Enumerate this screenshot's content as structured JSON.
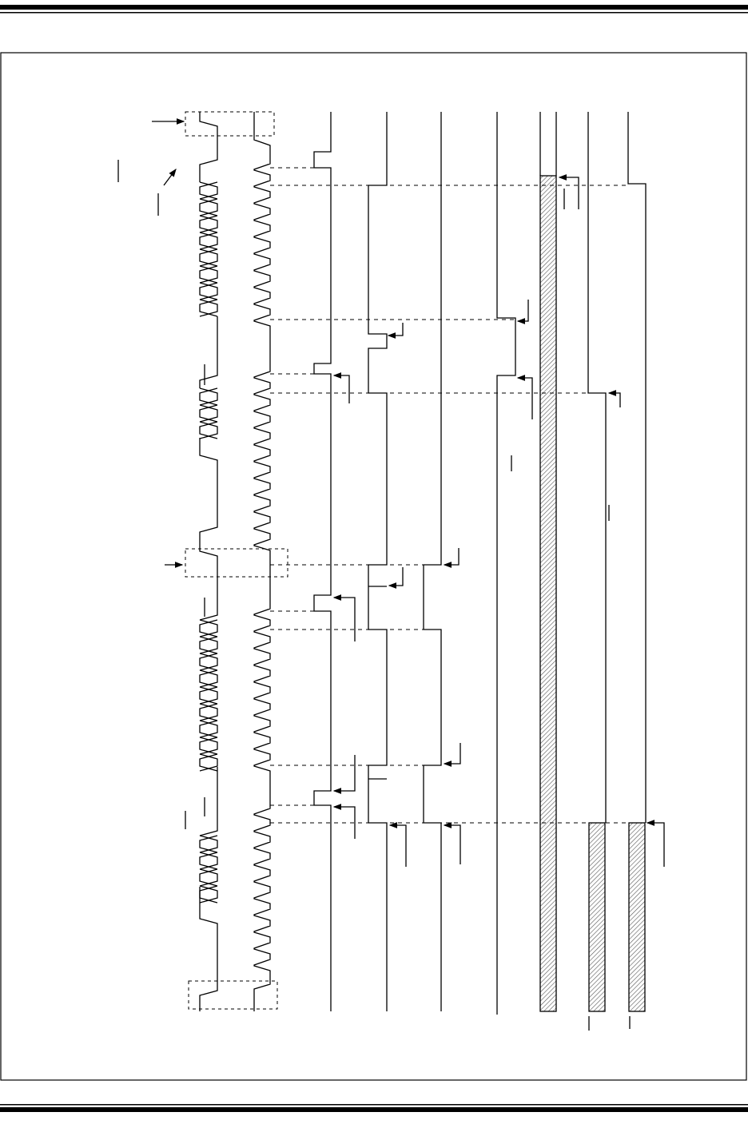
{
  "diagram": {
    "type": "timing-diagram",
    "orientation": "rotated-90",
    "colors": {
      "line": "#000000",
      "background": "#ffffff",
      "hatch": "#555555"
    }
  }
}
